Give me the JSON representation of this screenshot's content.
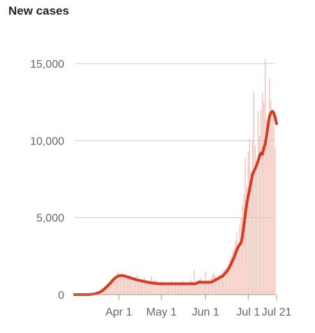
{
  "chart_data": {
    "type": "bar",
    "title": "New cases",
    "xlabel": "",
    "ylabel": "",
    "x_range": [
      "Mar 1",
      "Jul 21"
    ],
    "ylim": [
      0,
      15500
    ],
    "grid": true,
    "legend": "none",
    "y_ticks": [
      {
        "value": 0,
        "label": "0"
      },
      {
        "value": 5000,
        "label": "5,000"
      },
      {
        "value": 10000,
        "label": "10,000"
      },
      {
        "value": 15000,
        "label": "15,000"
      }
    ],
    "x_ticks": [
      {
        "day": 31,
        "label": "Apr 1"
      },
      {
        "day": 61,
        "label": "May 1"
      },
      {
        "day": 92,
        "label": "Jun 1"
      },
      {
        "day": 122,
        "label": "Jul 1"
      },
      {
        "day": 142,
        "label": "Jul 21"
      }
    ],
    "series": [
      {
        "name": "",
        "kind": "daily-bars",
        "values": [
          0,
          0,
          0,
          0,
          0,
          0,
          0,
          0,
          0,
          0,
          10,
          20,
          30,
          40,
          60,
          90,
          130,
          180,
          250,
          330,
          420,
          500,
          600,
          700,
          800,
          900,
          1000,
          1100,
          1050,
          1200,
          1500,
          1400,
          1300,
          1350,
          1200,
          1150,
          1250,
          1100,
          1050,
          1300,
          1200,
          1000,
          900,
          1150,
          1250,
          900,
          850,
          1000,
          950,
          1100,
          900,
          800,
          850,
          950,
          1200,
          900,
          700,
          1000,
          800,
          700,
          650,
          900,
          700,
          650,
          800,
          750,
          700,
          650,
          900,
          650,
          600,
          850,
          700,
          650,
          800,
          700,
          900,
          700,
          650,
          600,
          700,
          900,
          1000,
          800,
          1600,
          700,
          900,
          850,
          1000,
          1100,
          900,
          800,
          1500,
          900,
          1000,
          850,
          1100,
          1300,
          1400,
          1200,
          1100,
          1300,
          1250,
          1400,
          1500,
          1600,
          1700,
          1800,
          2000,
          2300,
          2500,
          2800,
          3000,
          3500,
          4000,
          3100,
          4500,
          5000,
          5800,
          6500,
          8900,
          7000,
          9300,
          10100,
          8000,
          10000,
          13200,
          9700,
          8500,
          11900,
          10300,
          12000,
          13100,
          12500,
          15300,
          11300,
          10000,
          14000,
          12600,
          12000,
          11800,
          9500
        ]
      },
      {
        "name": "",
        "kind": "moving-average",
        "color": "#d43d25",
        "values": [
          0,
          0,
          0,
          0,
          0,
          0,
          0,
          0,
          0,
          0,
          0,
          10,
          20,
          30,
          50,
          70,
          100,
          140,
          180,
          230,
          300,
          380,
          460,
          550,
          640,
          740,
          850,
          950,
          1050,
          1120,
          1180,
          1210,
          1230,
          1240,
          1230,
          1210,
          1180,
          1150,
          1120,
          1090,
          1060,
          1030,
          1000,
          970,
          950,
          930,
          910,
          890,
          870,
          850,
          830,
          810,
          790,
          770,
          760,
          750,
          740,
          730,
          720,
          710,
          700,
          700,
          700,
          700,
          700,
          700,
          700,
          700,
          700,
          700,
          700,
          700,
          700,
          700,
          700,
          700,
          700,
          700,
          700,
          700,
          700,
          700,
          700,
          700,
          700,
          700,
          750,
          800,
          820,
          800,
          800,
          800,
          800,
          800,
          800,
          800,
          800,
          850,
          900,
          950,
          1000,
          1050,
          1100,
          1150,
          1200,
          1300,
          1400,
          1500,
          1650,
          1800,
          2000,
          2200,
          2400,
          2650,
          2900,
          3100,
          3250,
          3350,
          3800,
          4500,
          5200,
          5900,
          6400,
          6800,
          7300,
          7800,
          8000,
          8200,
          8400,
          8700,
          9000,
          9200,
          9100,
          9500,
          9800,
          10300,
          11000,
          11600,
          11800,
          11900,
          11800,
          11500,
          11100
        ]
      }
    ]
  }
}
